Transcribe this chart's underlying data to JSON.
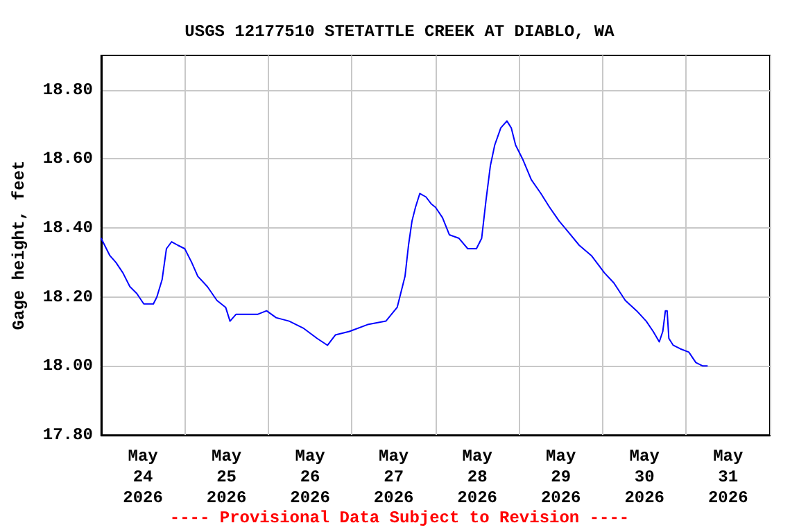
{
  "chart_data": {
    "type": "line",
    "title": "USGS 12177510 STETATTLE CREEK AT DIABLO, WA",
    "ylabel": "Gage height, feet",
    "annotations": [
      "---- Provisional Data Subject to Revision ----"
    ],
    "x": [
      "2026-05-23T12:00",
      "2026-05-23T13:00",
      "2026-05-23T14:30",
      "2026-05-23T16:15",
      "2026-05-23T18:15",
      "2026-05-23T20:15",
      "2026-05-23T22:15",
      "2026-05-24T00:15",
      "2026-05-24T01:30",
      "2026-05-24T03:00",
      "2026-05-24T04:00",
      "2026-05-24T05:30",
      "2026-05-24T06:45",
      "2026-05-24T08:15",
      "2026-05-24T10:00",
      "2026-05-24T12:00",
      "2026-05-24T14:00",
      "2026-05-24T15:45",
      "2026-05-24T18:30",
      "2026-05-24T21:15",
      "2026-05-24T23:45",
      "2026-05-25T01:00",
      "2026-05-25T02:45",
      "2026-05-25T05:00",
      "2026-05-25T09:00",
      "2026-05-25T11:30",
      "2026-05-25T14:15",
      "2026-05-25T18:00",
      "2026-05-25T22:00",
      "2026-05-26T02:00",
      "2026-05-26T05:00",
      "2026-05-26T07:15",
      "2026-05-26T11:15",
      "2026-05-26T16:30",
      "2026-05-26T21:45",
      "2026-05-27T01:00",
      "2026-05-27T02:00",
      "2026-05-27T03:15",
      "2026-05-27T04:15",
      "2026-05-27T05:15",
      "2026-05-27T06:15",
      "2026-05-27T07:30",
      "2026-05-27T09:15",
      "2026-05-27T10:45",
      "2026-05-27T12:00",
      "2026-05-27T14:00",
      "2026-05-27T16:00",
      "2026-05-27T18:45",
      "2026-05-27T21:15",
      "2026-05-27T23:45",
      "2026-05-28T01:15",
      "2026-05-28T02:30",
      "2026-05-28T03:45",
      "2026-05-28T05:00",
      "2026-05-28T06:45",
      "2026-05-28T08:30",
      "2026-05-28T09:45",
      "2026-05-28T11:00",
      "2026-05-28T13:00",
      "2026-05-28T15:30",
      "2026-05-28T18:15",
      "2026-05-28T20:45",
      "2026-05-28T23:30",
      "2026-05-29T02:00",
      "2026-05-29T05:15",
      "2026-05-29T08:45",
      "2026-05-29T12:30",
      "2026-05-29T15:15",
      "2026-05-29T18:30",
      "2026-05-29T21:45",
      "2026-05-30T00:30",
      "2026-05-30T02:30",
      "2026-05-30T04:15",
      "2026-05-30T05:15",
      "2026-05-30T06:00",
      "2026-05-30T06:30",
      "2026-05-30T07:00",
      "2026-05-30T08:15",
      "2026-05-30T10:15",
      "2026-05-30T12:45",
      "2026-05-30T14:45",
      "2026-05-30T16:45",
      "2026-05-30T18:00"
    ],
    "series": [
      {
        "color": "#0000ff",
        "values": [
          18.37,
          18.35,
          18.32,
          18.3,
          18.27,
          18.23,
          18.21,
          18.18,
          18.18,
          18.18,
          18.2,
          18.25,
          18.34,
          18.36,
          18.35,
          18.34,
          18.3,
          18.26,
          18.23,
          18.19,
          18.17,
          18.13,
          18.15,
          18.15,
          18.15,
          18.16,
          18.14,
          18.13,
          18.11,
          18.08,
          18.06,
          18.09,
          18.1,
          18.12,
          18.13,
          18.17,
          18.21,
          18.26,
          18.35,
          18.42,
          18.46,
          18.5,
          18.49,
          18.47,
          18.46,
          18.43,
          18.38,
          18.37,
          18.34,
          18.34,
          18.37,
          18.48,
          18.58,
          18.64,
          18.69,
          18.71,
          18.69,
          18.64,
          18.6,
          18.54,
          18.5,
          18.46,
          18.42,
          18.39,
          18.35,
          18.32,
          18.27,
          18.24,
          18.19,
          18.16,
          18.13,
          18.1,
          18.07,
          18.1,
          18.16,
          18.16,
          18.08,
          18.06,
          18.05,
          18.04,
          18.01,
          18.0,
          18.0
        ]
      }
    ],
    "xlim": [
      "2026-05-23T12:00",
      "2026-05-31T12:00"
    ],
    "xticks": [
      {
        "value": "2026-05-23T12:00",
        "label": null
      },
      {
        "value": "2026-05-24T00:00",
        "label": "May\n24\n2026"
      },
      {
        "value": "2026-05-24T12:00",
        "label": null
      },
      {
        "value": "2026-05-25T00:00",
        "label": "May\n25\n2026"
      },
      {
        "value": "2026-05-25T12:00",
        "label": null
      },
      {
        "value": "2026-05-26T00:00",
        "label": "May\n26\n2026"
      },
      {
        "value": "2026-05-26T12:00",
        "label": null
      },
      {
        "value": "2026-05-27T00:00",
        "label": "May\n27\n2026"
      },
      {
        "value": "2026-05-27T12:00",
        "label": null
      },
      {
        "value": "2026-05-28T00:00",
        "label": "May\n28\n2026"
      },
      {
        "value": "2026-05-28T12:00",
        "label": null
      },
      {
        "value": "2026-05-29T00:00",
        "label": "May\n29\n2026"
      },
      {
        "value": "2026-05-29T12:00",
        "label": null
      },
      {
        "value": "2026-05-30T00:00",
        "label": "May\n30\n2026"
      },
      {
        "value": "2026-05-30T12:00",
        "label": null
      },
      {
        "value": "2026-05-31T00:00",
        "label": "May\n31\n2026"
      },
      {
        "value": "2026-05-31T12:00",
        "label": null
      }
    ],
    "ylim": [
      17.8,
      18.9
    ],
    "yticks": [
      {
        "value": 17.8,
        "label": "17.80"
      },
      {
        "value": 18.0,
        "label": "18.00"
      },
      {
        "value": 18.2,
        "label": "18.20"
      },
      {
        "value": 18.4,
        "label": "18.40"
      },
      {
        "value": 18.6,
        "label": "18.60"
      },
      {
        "value": 18.8,
        "label": "18.80"
      }
    ],
    "grid": true,
    "marker": "none",
    "line_style": "solid"
  }
}
